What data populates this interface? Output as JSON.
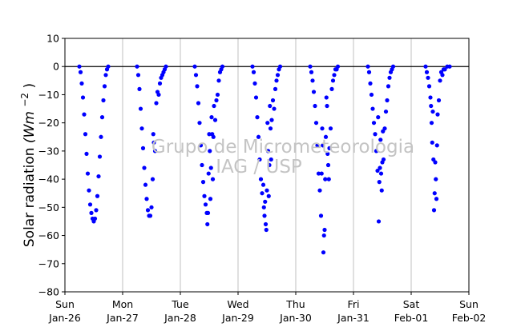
{
  "chart_data": {
    "type": "scatter",
    "ylabel": "Solar radiation",
    "ylabel_unit": "(Wm",
    "ylabel_exp": "−2",
    "ylabel_close": ")",
    "ylim": [
      -80,
      10
    ],
    "yticks": [
      10,
      0,
      -10,
      -20,
      -30,
      -40,
      -50,
      -60,
      -70,
      -80
    ],
    "xlim": [
      "2014-01-26",
      "2014-02-02"
    ],
    "xticks": [
      {
        "date": "2014-01-26",
        "day": "Sun",
        "label": "Jan-26"
      },
      {
        "date": "2014-01-27",
        "day": "Mon",
        "label": "Jan-27"
      },
      {
        "date": "2014-01-28",
        "day": "Tue",
        "label": "Jan-28"
      },
      {
        "date": "2014-01-29",
        "day": "Wed",
        "label": "Jan-29"
      },
      {
        "date": "2014-01-30",
        "day": "Thu",
        "label": "Jan-30"
      },
      {
        "date": "2014-01-31",
        "day": "Fri",
        "label": "Jan-31"
      },
      {
        "date": "2014-02-01",
        "day": "Sat",
        "label": "Feb-01"
      },
      {
        "date": "2014-02-02",
        "day": "Sun",
        "label": "Feb-02"
      }
    ],
    "grid": "vertical",
    "reference_line": 0,
    "marker_color": "#0000ff",
    "watermark": [
      "Grupo de Micrometeorologia",
      "IAG / USP"
    ],
    "series": [
      {
        "points": [
          [
            "2014-01-26 06:00",
            0
          ],
          [
            "2014-01-26 06:30",
            -2
          ],
          [
            "2014-01-26 07:00",
            -6
          ],
          [
            "2014-01-26 07:30",
            -11
          ],
          [
            "2014-01-26 08:00",
            -17
          ],
          [
            "2014-01-26 08:30",
            -24
          ],
          [
            "2014-01-26 09:00",
            -31
          ],
          [
            "2014-01-26 09:30",
            -38
          ],
          [
            "2014-01-26 10:00",
            -44
          ],
          [
            "2014-01-26 10:30",
            -49
          ],
          [
            "2014-01-26 11:00",
            -52
          ],
          [
            "2014-01-26 11:30",
            -54
          ],
          [
            "2014-01-26 12:00",
            -55
          ],
          [
            "2014-01-26 12:30",
            -54
          ],
          [
            "2014-01-26 13:00",
            -51
          ],
          [
            "2014-01-26 13:30",
            -46
          ],
          [
            "2014-01-26 14:00",
            -39
          ],
          [
            "2014-01-26 14:30",
            -32
          ],
          [
            "2014-01-26 15:00",
            -25
          ],
          [
            "2014-01-26 15:30",
            -18
          ],
          [
            "2014-01-26 16:00",
            -12
          ],
          [
            "2014-01-26 16:30",
            -7
          ],
          [
            "2014-01-26 17:00",
            -3
          ],
          [
            "2014-01-26 17:30",
            -1
          ],
          [
            "2014-01-26 18:00",
            0
          ],
          [
            "2014-01-27 06:00",
            0
          ],
          [
            "2014-01-27 06:30",
            -3
          ],
          [
            "2014-01-27 07:00",
            -8
          ],
          [
            "2014-01-27 07:30",
            -15
          ],
          [
            "2014-01-27 08:00",
            -22
          ],
          [
            "2014-01-27 08:30",
            -29
          ],
          [
            "2014-01-27 09:00",
            -36
          ],
          [
            "2014-01-27 09:30",
            -42
          ],
          [
            "2014-01-27 10:00",
            -47
          ],
          [
            "2014-01-27 10:30",
            -51
          ],
          [
            "2014-01-27 11:00",
            -53
          ],
          [
            "2014-01-27 11:30",
            -53
          ],
          [
            "2014-01-27 12:00",
            -50
          ],
          [
            "2014-01-27 12:30",
            -40
          ],
          [
            "2014-01-27 12:45",
            -24
          ],
          [
            "2014-01-27 13:00",
            -27
          ],
          [
            "2014-01-27 13:30",
            -30
          ],
          [
            "2014-01-27 14:00",
            -13
          ],
          [
            "2014-01-27 14:30",
            -9
          ],
          [
            "2014-01-27 15:00",
            -10
          ],
          [
            "2014-01-27 15:30",
            -6
          ],
          [
            "2014-01-27 16:00",
            -4
          ],
          [
            "2014-01-27 16:30",
            -3
          ],
          [
            "2014-01-27 17:00",
            -2
          ],
          [
            "2014-01-27 17:30",
            -1
          ],
          [
            "2014-01-27 18:00",
            0
          ],
          [
            "2014-01-28 06:00",
            0
          ],
          [
            "2014-01-28 06:30",
            -3
          ],
          [
            "2014-01-28 07:00",
            -7
          ],
          [
            "2014-01-28 07:30",
            -13
          ],
          [
            "2014-01-28 08:00",
            -20
          ],
          [
            "2014-01-28 08:30",
            -28
          ],
          [
            "2014-01-28 09:00",
            -35
          ],
          [
            "2014-01-28 09:30",
            -41
          ],
          [
            "2014-01-28 10:00",
            -46
          ],
          [
            "2014-01-28 10:30",
            -49
          ],
          [
            "2014-01-28 11:00",
            -52
          ],
          [
            "2014-01-28 11:15",
            -56
          ],
          [
            "2014-01-28 11:30",
            -52
          ],
          [
            "2014-01-28 11:45",
            -38
          ],
          [
            "2014-01-28 12:00",
            -24
          ],
          [
            "2014-01-28 12:15",
            -30
          ],
          [
            "2014-01-28 12:30",
            -47
          ],
          [
            "2014-01-28 12:45",
            -36
          ],
          [
            "2014-01-28 13:00",
            -18
          ],
          [
            "2014-01-28 13:15",
            -24
          ],
          [
            "2014-01-28 13:30",
            -40
          ],
          [
            "2014-01-28 13:45",
            -25
          ],
          [
            "2014-01-28 14:00",
            -14
          ],
          [
            "2014-01-28 14:30",
            -19
          ],
          [
            "2014-01-28 15:00",
            -12
          ],
          [
            "2014-01-28 15:30",
            -10
          ],
          [
            "2014-01-28 16:00",
            -5
          ],
          [
            "2014-01-28 16:30",
            -2
          ],
          [
            "2014-01-28 17:00",
            -1
          ],
          [
            "2014-01-28 17:30",
            0
          ],
          [
            "2014-01-29 06:00",
            0
          ],
          [
            "2014-01-29 06:30",
            -2
          ],
          [
            "2014-01-29 07:00",
            -6
          ],
          [
            "2014-01-29 07:30",
            -11
          ],
          [
            "2014-01-29 08:00",
            -18
          ],
          [
            "2014-01-29 08:30",
            -25
          ],
          [
            "2014-01-29 09:00",
            -33
          ],
          [
            "2014-01-29 09:30",
            -40
          ],
          [
            "2014-01-29 10:00",
            -45
          ],
          [
            "2014-01-29 10:30",
            -42
          ],
          [
            "2014-01-29 10:45",
            -50
          ],
          [
            "2014-01-29 11:00",
            -53
          ],
          [
            "2014-01-29 11:15",
            -48
          ],
          [
            "2014-01-29 11:30",
            -56
          ],
          [
            "2014-01-29 11:45",
            -58
          ],
          [
            "2014-01-29 12:00",
            -44
          ],
          [
            "2014-01-29 12:15",
            -20
          ],
          [
            "2014-01-29 12:30",
            -30
          ],
          [
            "2014-01-29 12:45",
            -46
          ],
          [
            "2014-01-29 13:00",
            -35
          ],
          [
            "2014-01-29 13:15",
            -14
          ],
          [
            "2014-01-29 13:30",
            -22
          ],
          [
            "2014-01-29 13:45",
            -33
          ],
          [
            "2014-01-29 14:00",
            -19
          ],
          [
            "2014-01-29 14:30",
            -12
          ],
          [
            "2014-01-29 15:00",
            -15
          ],
          [
            "2014-01-29 15:30",
            -8
          ],
          [
            "2014-01-29 16:00",
            -5
          ],
          [
            "2014-01-29 16:30",
            -3
          ],
          [
            "2014-01-29 17:00",
            -1
          ],
          [
            "2014-01-29 17:30",
            0
          ],
          [
            "2014-01-30 06:00",
            0
          ],
          [
            "2014-01-30 06:30",
            -2
          ],
          [
            "2014-01-30 07:00",
            -5
          ],
          [
            "2014-01-30 07:30",
            -9
          ],
          [
            "2014-01-30 08:00",
            -14
          ],
          [
            "2014-01-30 08:30",
            -20
          ],
          [
            "2014-01-30 09:00",
            -28
          ],
          [
            "2014-01-30 09:30",
            -38
          ],
          [
            "2014-01-30 10:00",
            -44
          ],
          [
            "2014-01-30 10:30",
            -53
          ],
          [
            "2014-01-30 10:45",
            -38
          ],
          [
            "2014-01-30 11:00",
            -22
          ],
          [
            "2014-01-30 11:15",
            -28
          ],
          [
            "2014-01-30 11:30",
            -66
          ],
          [
            "2014-01-30 11:45",
            -60
          ],
          [
            "2014-01-30 12:00",
            -58
          ],
          [
            "2014-01-30 12:15",
            -40
          ],
          [
            "2014-01-30 12:30",
            -25
          ],
          [
            "2014-01-30 12:45",
            -11
          ],
          [
            "2014-01-30 13:00",
            -14
          ],
          [
            "2014-01-30 13:15",
            -31
          ],
          [
            "2014-01-30 13:30",
            -35
          ],
          [
            "2014-01-30 13:45",
            -40
          ],
          [
            "2014-01-30 14:00",
            -29
          ],
          [
            "2014-01-30 14:30",
            -22
          ],
          [
            "2014-01-30 15:00",
            -8
          ],
          [
            "2014-01-30 15:30",
            -5
          ],
          [
            "2014-01-30 16:00",
            -3
          ],
          [
            "2014-01-30 16:30",
            -1
          ],
          [
            "2014-01-30 17:00",
            -1
          ],
          [
            "2014-01-30 17:30",
            0
          ],
          [
            "2014-01-31 06:00",
            0
          ],
          [
            "2014-01-31 06:30",
            -2
          ],
          [
            "2014-01-31 07:00",
            -6
          ],
          [
            "2014-01-31 07:30",
            -10
          ],
          [
            "2014-01-31 08:00",
            -15
          ],
          [
            "2014-01-31 08:30",
            -20
          ],
          [
            "2014-01-31 09:00",
            -24
          ],
          [
            "2014-01-31 09:30",
            -30
          ],
          [
            "2014-01-31 10:00",
            -37
          ],
          [
            "2014-01-31 10:15",
            -18
          ],
          [
            "2014-01-31 10:30",
            -55
          ],
          [
            "2014-01-31 10:45",
            -41
          ],
          [
            "2014-01-31 11:00",
            -36
          ],
          [
            "2014-01-31 11:15",
            -26
          ],
          [
            "2014-01-31 11:30",
            -38
          ],
          [
            "2014-01-31 11:45",
            -44
          ],
          [
            "2014-01-31 12:00",
            -34
          ],
          [
            "2014-01-31 12:15",
            -23
          ],
          [
            "2014-01-31 12:30",
            -33
          ],
          [
            "2014-01-31 13:00",
            -22
          ],
          [
            "2014-01-31 13:30",
            -16
          ],
          [
            "2014-01-31 14:00",
            -12
          ],
          [
            "2014-01-31 14:30",
            -7
          ],
          [
            "2014-01-31 15:00",
            -4
          ],
          [
            "2014-01-31 15:30",
            -2
          ],
          [
            "2014-01-31 16:00",
            -1
          ],
          [
            "2014-01-31 16:30",
            0
          ],
          [
            "2014-02-01 06:00",
            0
          ],
          [
            "2014-02-01 06:30",
            -2
          ],
          [
            "2014-02-01 07:00",
            -4
          ],
          [
            "2014-02-01 07:30",
            -7
          ],
          [
            "2014-02-01 08:00",
            -11
          ],
          [
            "2014-02-01 08:15",
            -14
          ],
          [
            "2014-02-01 08:30",
            -20
          ],
          [
            "2014-02-01 08:45",
            -27
          ],
          [
            "2014-02-01 09:00",
            -16
          ],
          [
            "2014-02-01 09:15",
            -33
          ],
          [
            "2014-02-01 09:30",
            -51
          ],
          [
            "2014-02-01 09:45",
            -45
          ],
          [
            "2014-02-01 10:00",
            -34
          ],
          [
            "2014-02-01 10:15",
            -40
          ],
          [
            "2014-02-01 10:30",
            -47
          ],
          [
            "2014-02-01 10:45",
            -28
          ],
          [
            "2014-02-01 11:00",
            -17
          ],
          [
            "2014-02-01 11:30",
            -12
          ],
          [
            "2014-02-01 12:00",
            -5
          ],
          [
            "2014-02-01 12:30",
            -2
          ],
          [
            "2014-02-01 13:00",
            -3
          ],
          [
            "2014-02-01 13:30",
            -1
          ],
          [
            "2014-02-01 14:00",
            -1
          ],
          [
            "2014-02-01 15:00",
            0
          ],
          [
            "2014-02-01 16:00",
            0
          ]
        ]
      }
    ]
  }
}
